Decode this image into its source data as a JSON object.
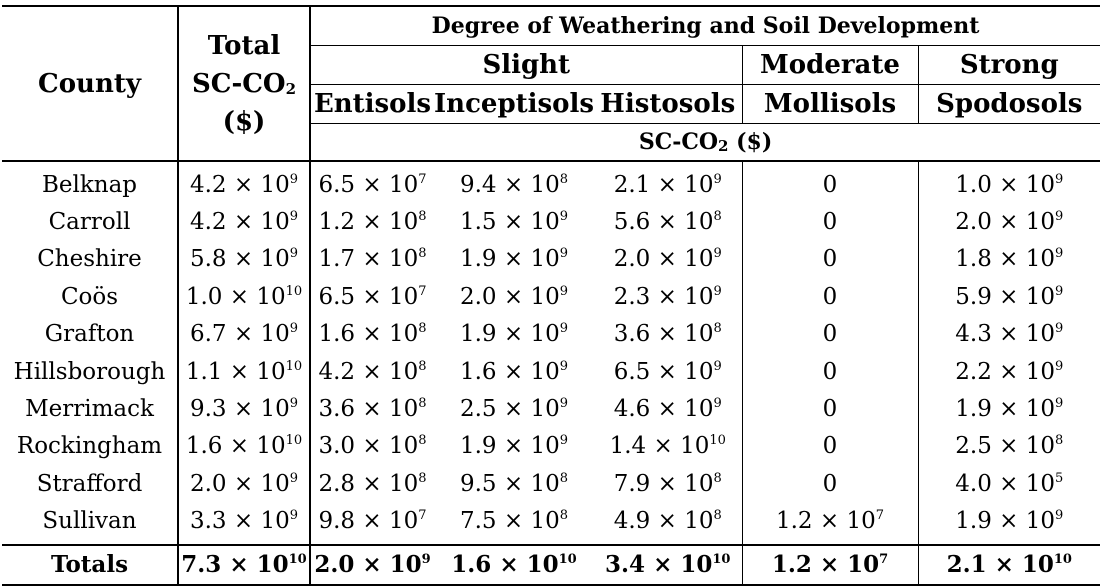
{
  "header": {
    "county": "County",
    "total_line1": "Total",
    "total_line2": "SC-CO",
    "total_sub": "2",
    "total_line3": "($)",
    "degree": "Degree of Weathering and Soil Development",
    "slight": "Slight",
    "moderate": "Moderate",
    "strong": "Strong",
    "orders": [
      "Entisols",
      "Inceptisols",
      "Histosols",
      "Mollisols",
      "Spodosols"
    ],
    "unit_main": "SC-CO",
    "unit_sub": "2",
    "unit_tail": " ($)"
  },
  "rows": [
    {
      "county": "Belknap",
      "cells": [
        [
          "4.2",
          "9"
        ],
        [
          "6.5",
          "7"
        ],
        [
          "9.4",
          "8"
        ],
        [
          "2.1",
          "9"
        ],
        [
          "0",
          ""
        ],
        [
          "1.0",
          "9"
        ]
      ]
    },
    {
      "county": "Carroll",
      "cells": [
        [
          "4.2",
          "9"
        ],
        [
          "1.2",
          "8"
        ],
        [
          "1.5",
          "9"
        ],
        [
          "5.6",
          "8"
        ],
        [
          "0",
          ""
        ],
        [
          "2.0",
          "9"
        ]
      ]
    },
    {
      "county": "Cheshire",
      "cells": [
        [
          "5.8",
          "9"
        ],
        [
          "1.7",
          "8"
        ],
        [
          "1.9",
          "9"
        ],
        [
          "2.0",
          "9"
        ],
        [
          "0",
          ""
        ],
        [
          "1.8",
          "9"
        ]
      ]
    },
    {
      "county": "Coös",
      "cells": [
        [
          "1.0",
          "10"
        ],
        [
          "6.5",
          "7"
        ],
        [
          "2.0",
          "9"
        ],
        [
          "2.3",
          "9"
        ],
        [
          "0",
          ""
        ],
        [
          "5.9",
          "9"
        ]
      ]
    },
    {
      "county": "Grafton",
      "cells": [
        [
          "6.7",
          "9"
        ],
        [
          "1.6",
          "8"
        ],
        [
          "1.9",
          "9"
        ],
        [
          "3.6",
          "8"
        ],
        [
          "0",
          ""
        ],
        [
          "4.3",
          "9"
        ]
      ]
    },
    {
      "county": "Hillsborough",
      "cells": [
        [
          "1.1",
          "10"
        ],
        [
          "4.2",
          "8"
        ],
        [
          "1.6",
          "9"
        ],
        [
          "6.5",
          "9"
        ],
        [
          "0",
          ""
        ],
        [
          "2.2",
          "9"
        ]
      ]
    },
    {
      "county": "Merrimack",
      "cells": [
        [
          "9.3",
          "9"
        ],
        [
          "3.6",
          "8"
        ],
        [
          "2.5",
          "9"
        ],
        [
          "4.6",
          "9"
        ],
        [
          "0",
          ""
        ],
        [
          "1.9",
          "9"
        ]
      ]
    },
    {
      "county": "Rockingham",
      "cells": [
        [
          "1.6",
          "10"
        ],
        [
          "3.0",
          "8"
        ],
        [
          "1.9",
          "9"
        ],
        [
          "1.4",
          "10"
        ],
        [
          "0",
          ""
        ],
        [
          "2.5",
          "8"
        ]
      ]
    },
    {
      "county": "Strafford",
      "cells": [
        [
          "2.0",
          "9"
        ],
        [
          "2.8",
          "8"
        ],
        [
          "9.5",
          "8"
        ],
        [
          "7.9",
          "8"
        ],
        [
          "0",
          ""
        ],
        [
          "4.0",
          "5"
        ]
      ]
    },
    {
      "county": "Sullivan",
      "cells": [
        [
          "3.3",
          "9"
        ],
        [
          "9.8",
          "7"
        ],
        [
          "7.5",
          "8"
        ],
        [
          "4.9",
          "8"
        ],
        [
          "1.2",
          "7"
        ],
        [
          "1.9",
          "9"
        ]
      ]
    }
  ],
  "totals": {
    "label": "Totals",
    "cells": [
      [
        "7.3",
        "10"
      ],
      [
        "2.0",
        "9"
      ],
      [
        "1.6",
        "10"
      ],
      [
        "3.4",
        "10"
      ],
      [
        "1.2",
        "7"
      ],
      [
        "2.1",
        "10"
      ]
    ]
  },
  "times_base": " × 10"
}
